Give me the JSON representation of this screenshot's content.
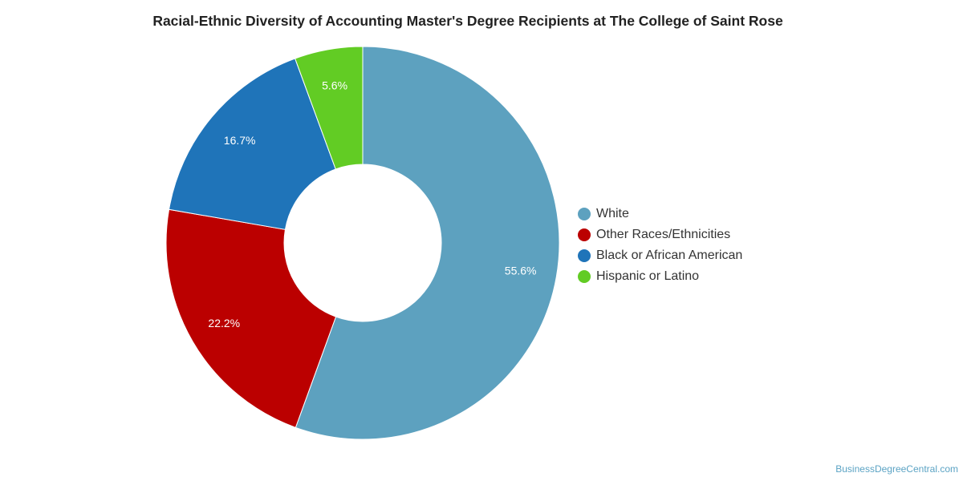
{
  "chart_data": {
    "type": "pie",
    "title": "Racial-Ethnic Diversity of Accounting Master's Degree Recipients at The College of Saint Rose",
    "donut": true,
    "legend": "right",
    "slices": [
      {
        "name": "White",
        "value": 55.6,
        "label": "55.6%",
        "color": "#5da1bf"
      },
      {
        "name": "Other Races/Ethnicities",
        "value": 22.2,
        "label": "22.2%",
        "color": "#bb0000"
      },
      {
        "name": "Black or African American",
        "value": 16.7,
        "label": "16.7%",
        "color": "#1f74b9"
      },
      {
        "name": "Hispanic or Latino",
        "value": 5.6,
        "label": "5.6%",
        "color": "#62cc24"
      }
    ]
  },
  "watermark": "BusinessDegreeCentral.com"
}
